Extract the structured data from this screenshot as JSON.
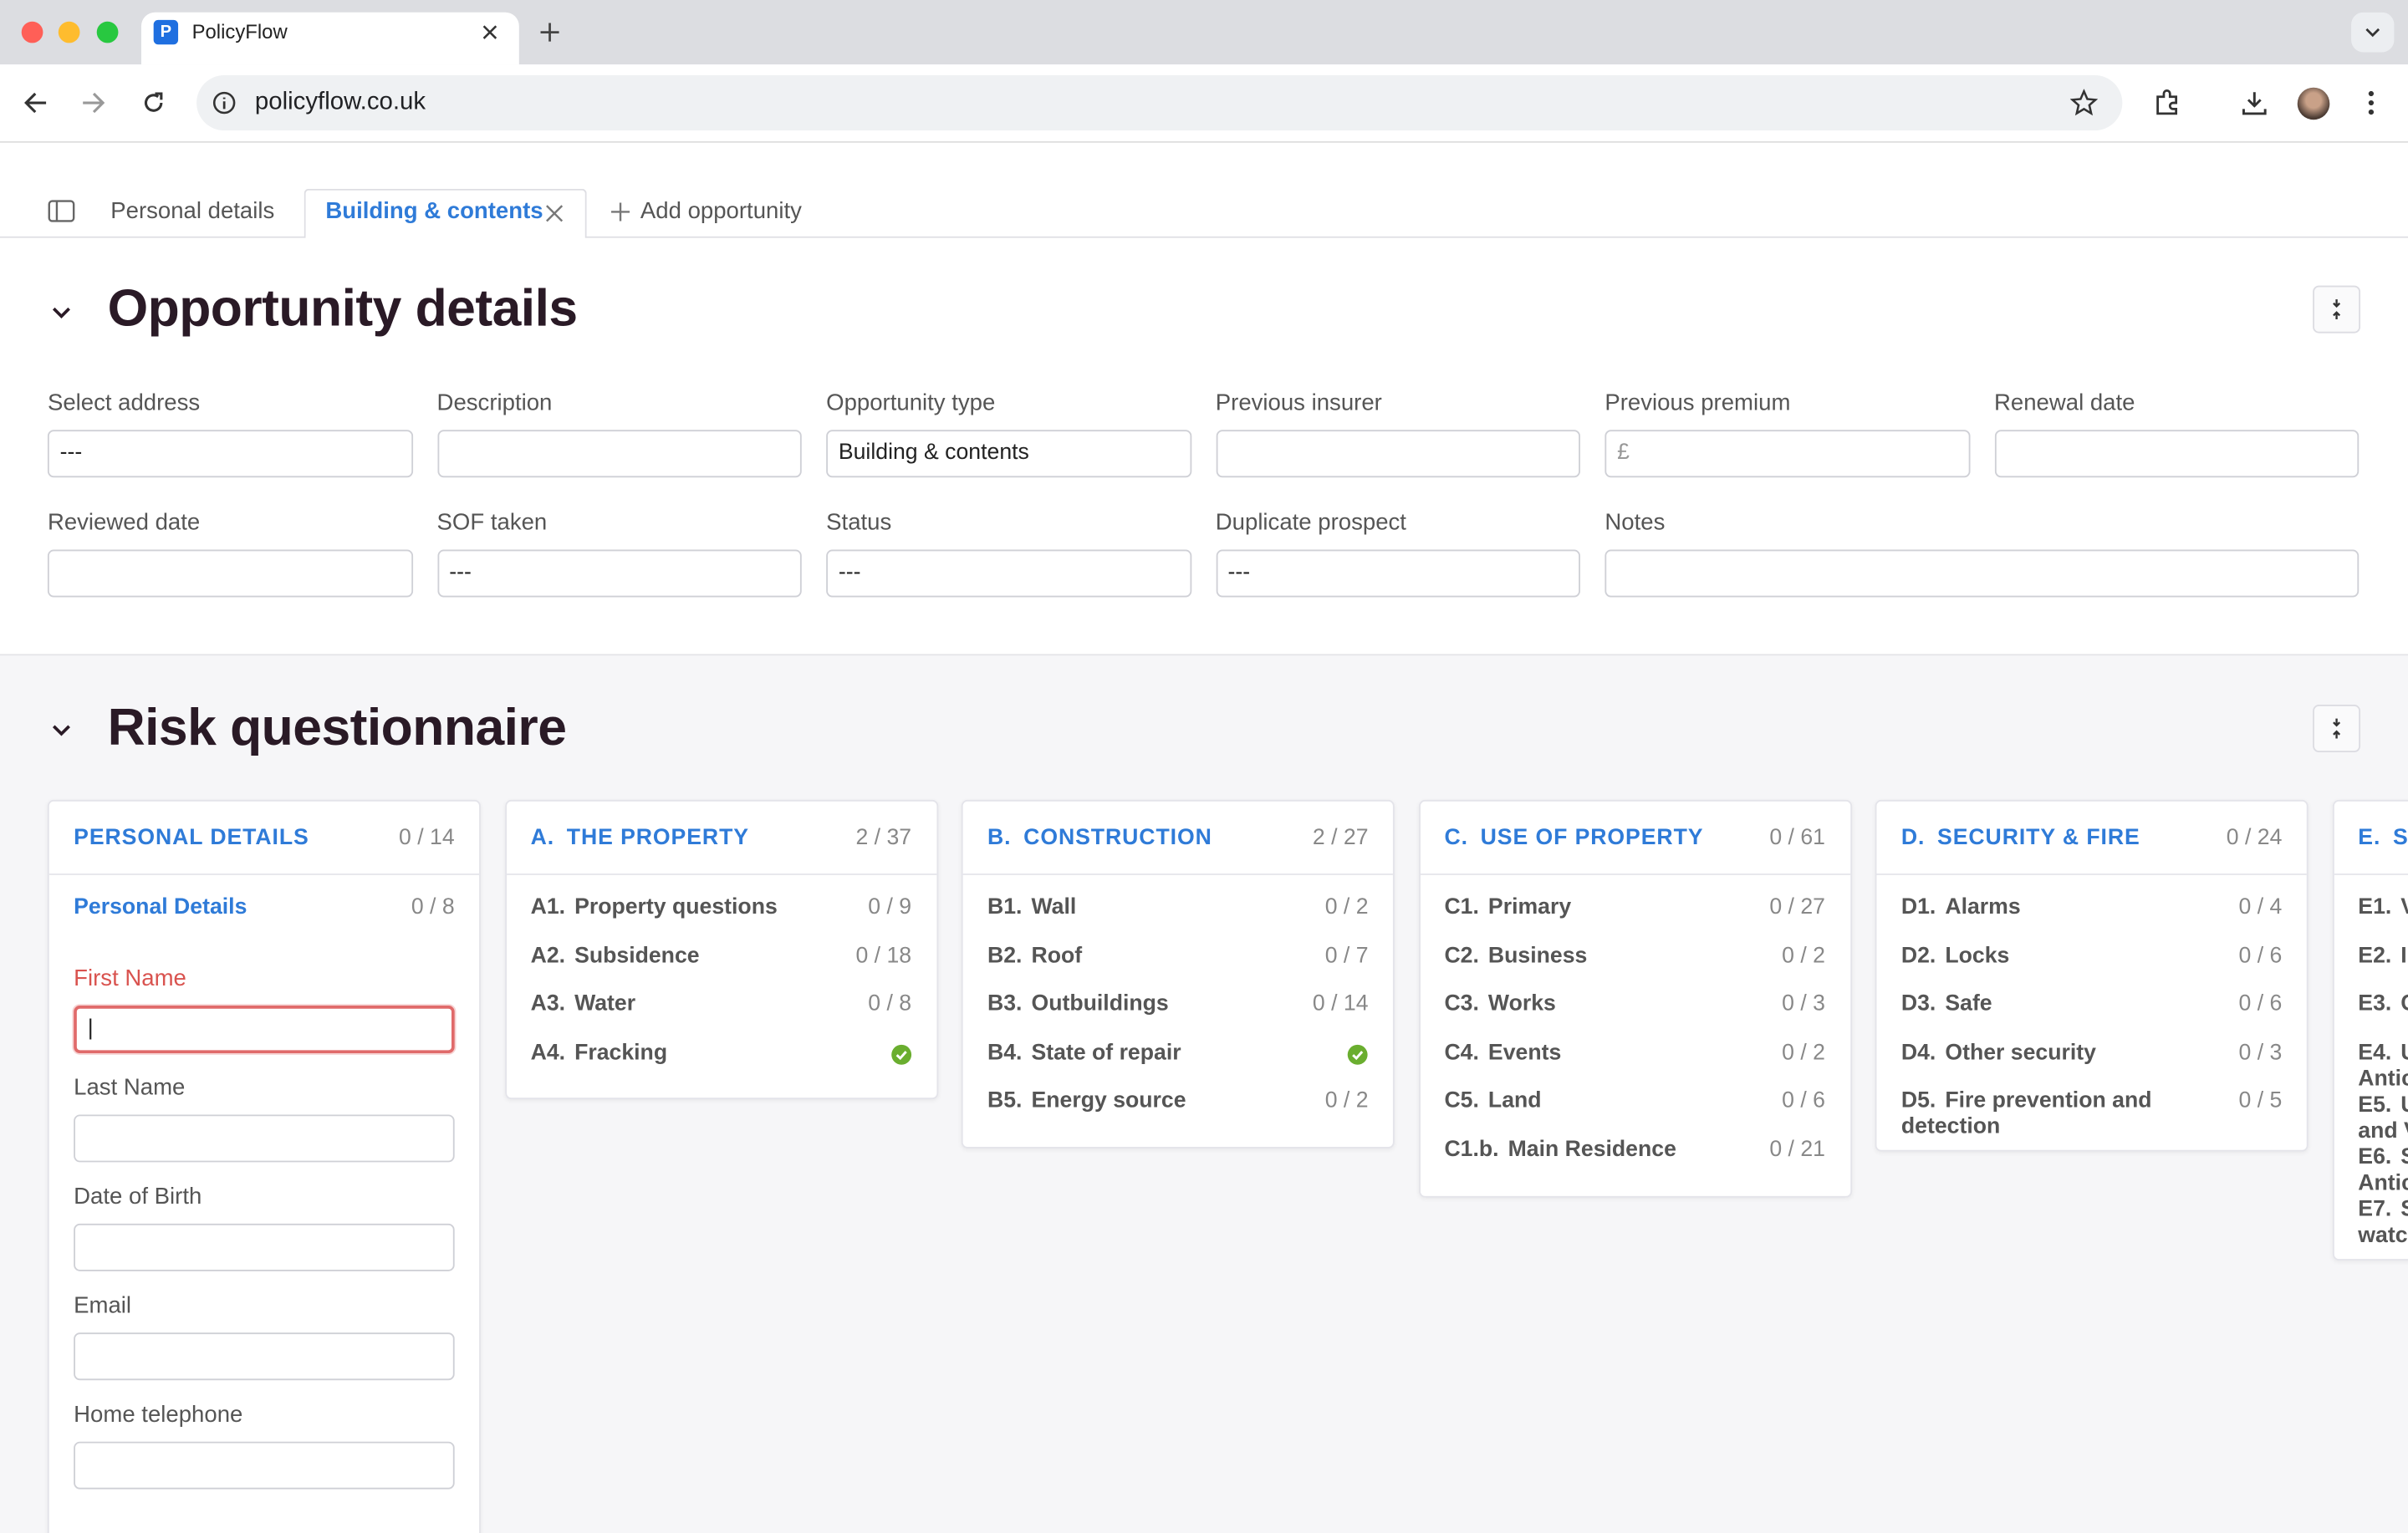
{
  "browser": {
    "tab_title": "PolicyFlow",
    "url": "policyflow.co.uk"
  },
  "tabs": [
    "Personal details",
    "Building & contents",
    "Add opportunity"
  ],
  "opportunity": {
    "title": "Opportunity details",
    "fields": [
      {
        "label": "Select address",
        "value": "---"
      },
      {
        "label": "Description"
      },
      {
        "label": "Opportunity type",
        "value": "Building & contents"
      },
      {
        "label": "Previous insurer"
      },
      {
        "label": "Previous premium",
        "placeholder": "£"
      },
      {
        "label": "Renewal date"
      },
      {
        "label": "Reviewed date"
      },
      {
        "label": "SOF taken",
        "value": "---"
      },
      {
        "label": "Status",
        "value": "---"
      },
      {
        "label": "Duplicate prospect",
        "value": "---"
      },
      {
        "label": "Notes"
      }
    ]
  },
  "risk": {
    "title": "Risk questionnaire",
    "columns": [
      {
        "title": "PERSONAL DETAILS",
        "progress": "0 / 14",
        "section": {
          "title": "Personal Details",
          "progress": "0 / 8"
        },
        "fields": [
          "First Name",
          "Last Name",
          "Date of Birth",
          "Email",
          "Home telephone"
        ]
      },
      {
        "letter": "A.",
        "title": "THE PROPERTY",
        "progress": "2 / 37",
        "items": [
          {
            "code": "A1.",
            "label": "Property questions",
            "progress": "0 / 9"
          },
          {
            "code": "A2.",
            "label": "Subsidence",
            "progress": "0 / 18"
          },
          {
            "code": "A3.",
            "label": "Water",
            "progress": "0 / 8"
          },
          {
            "code": "A4.",
            "label": "Fracking",
            "complete": true
          }
        ]
      },
      {
        "letter": "B.",
        "title": "CONSTRUCTION",
        "progress": "2 / 27",
        "items": [
          {
            "code": "B1.",
            "label": "Wall",
            "progress": "0 / 2"
          },
          {
            "code": "B2.",
            "label": "Roof",
            "progress": "0 / 7"
          },
          {
            "code": "B3.",
            "label": "Outbuildings",
            "progress": "0 / 14"
          },
          {
            "code": "B4.",
            "label": "State of repair",
            "complete": true
          },
          {
            "code": "B5.",
            "label": "Energy source",
            "progress": "0 / 2"
          }
        ]
      },
      {
        "letter": "C.",
        "title": "USE OF PROPERTY",
        "progress": "0 / 61",
        "items": [
          {
            "code": "C1.",
            "label": "Primary",
            "progress": "0 / 27"
          },
          {
            "code": "C2.",
            "label": "Business",
            "progress": "0 / 2"
          },
          {
            "code": "C3.",
            "label": "Works",
            "progress": "0 / 3"
          },
          {
            "code": "C4.",
            "label": "Events",
            "progress": "0 / 2"
          },
          {
            "code": "C5.",
            "label": "Land",
            "progress": "0 / 6"
          },
          {
            "code": "C1.b.",
            "label": "Main Residence",
            "progress": "0 / 21"
          }
        ]
      },
      {
        "letter": "D.",
        "title": "SECURITY & FIRE",
        "progress": "0 / 24",
        "items": [
          {
            "code": "D1.",
            "label": "Alarms",
            "progress": "0 / 4"
          },
          {
            "code": "D2.",
            "label": "Locks",
            "progress": "0 / 6"
          },
          {
            "code": "D3.",
            "label": "Safe",
            "progress": "0 / 6"
          },
          {
            "code": "D4.",
            "label": "Other security",
            "progress": "0 / 3"
          },
          {
            "code": "D5.",
            "label": "Fire prevention and detection",
            "progress": "0 / 5"
          }
        ]
      },
      {
        "letter": "E.",
        "title": "S",
        "items": [
          {
            "code": "E1.",
            "label": "V"
          },
          {
            "code": "E2.",
            "label": "I"
          },
          {
            "code": "E3.",
            "label": "C"
          },
          {
            "code": "E4.",
            "label": "U\nAntic"
          },
          {
            "code": "E5.",
            "label": "U\nand V"
          },
          {
            "code": "E6.",
            "label": "S\nAntic"
          },
          {
            "code": "E7.",
            "label": "S\nwatc"
          }
        ]
      }
    ]
  }
}
